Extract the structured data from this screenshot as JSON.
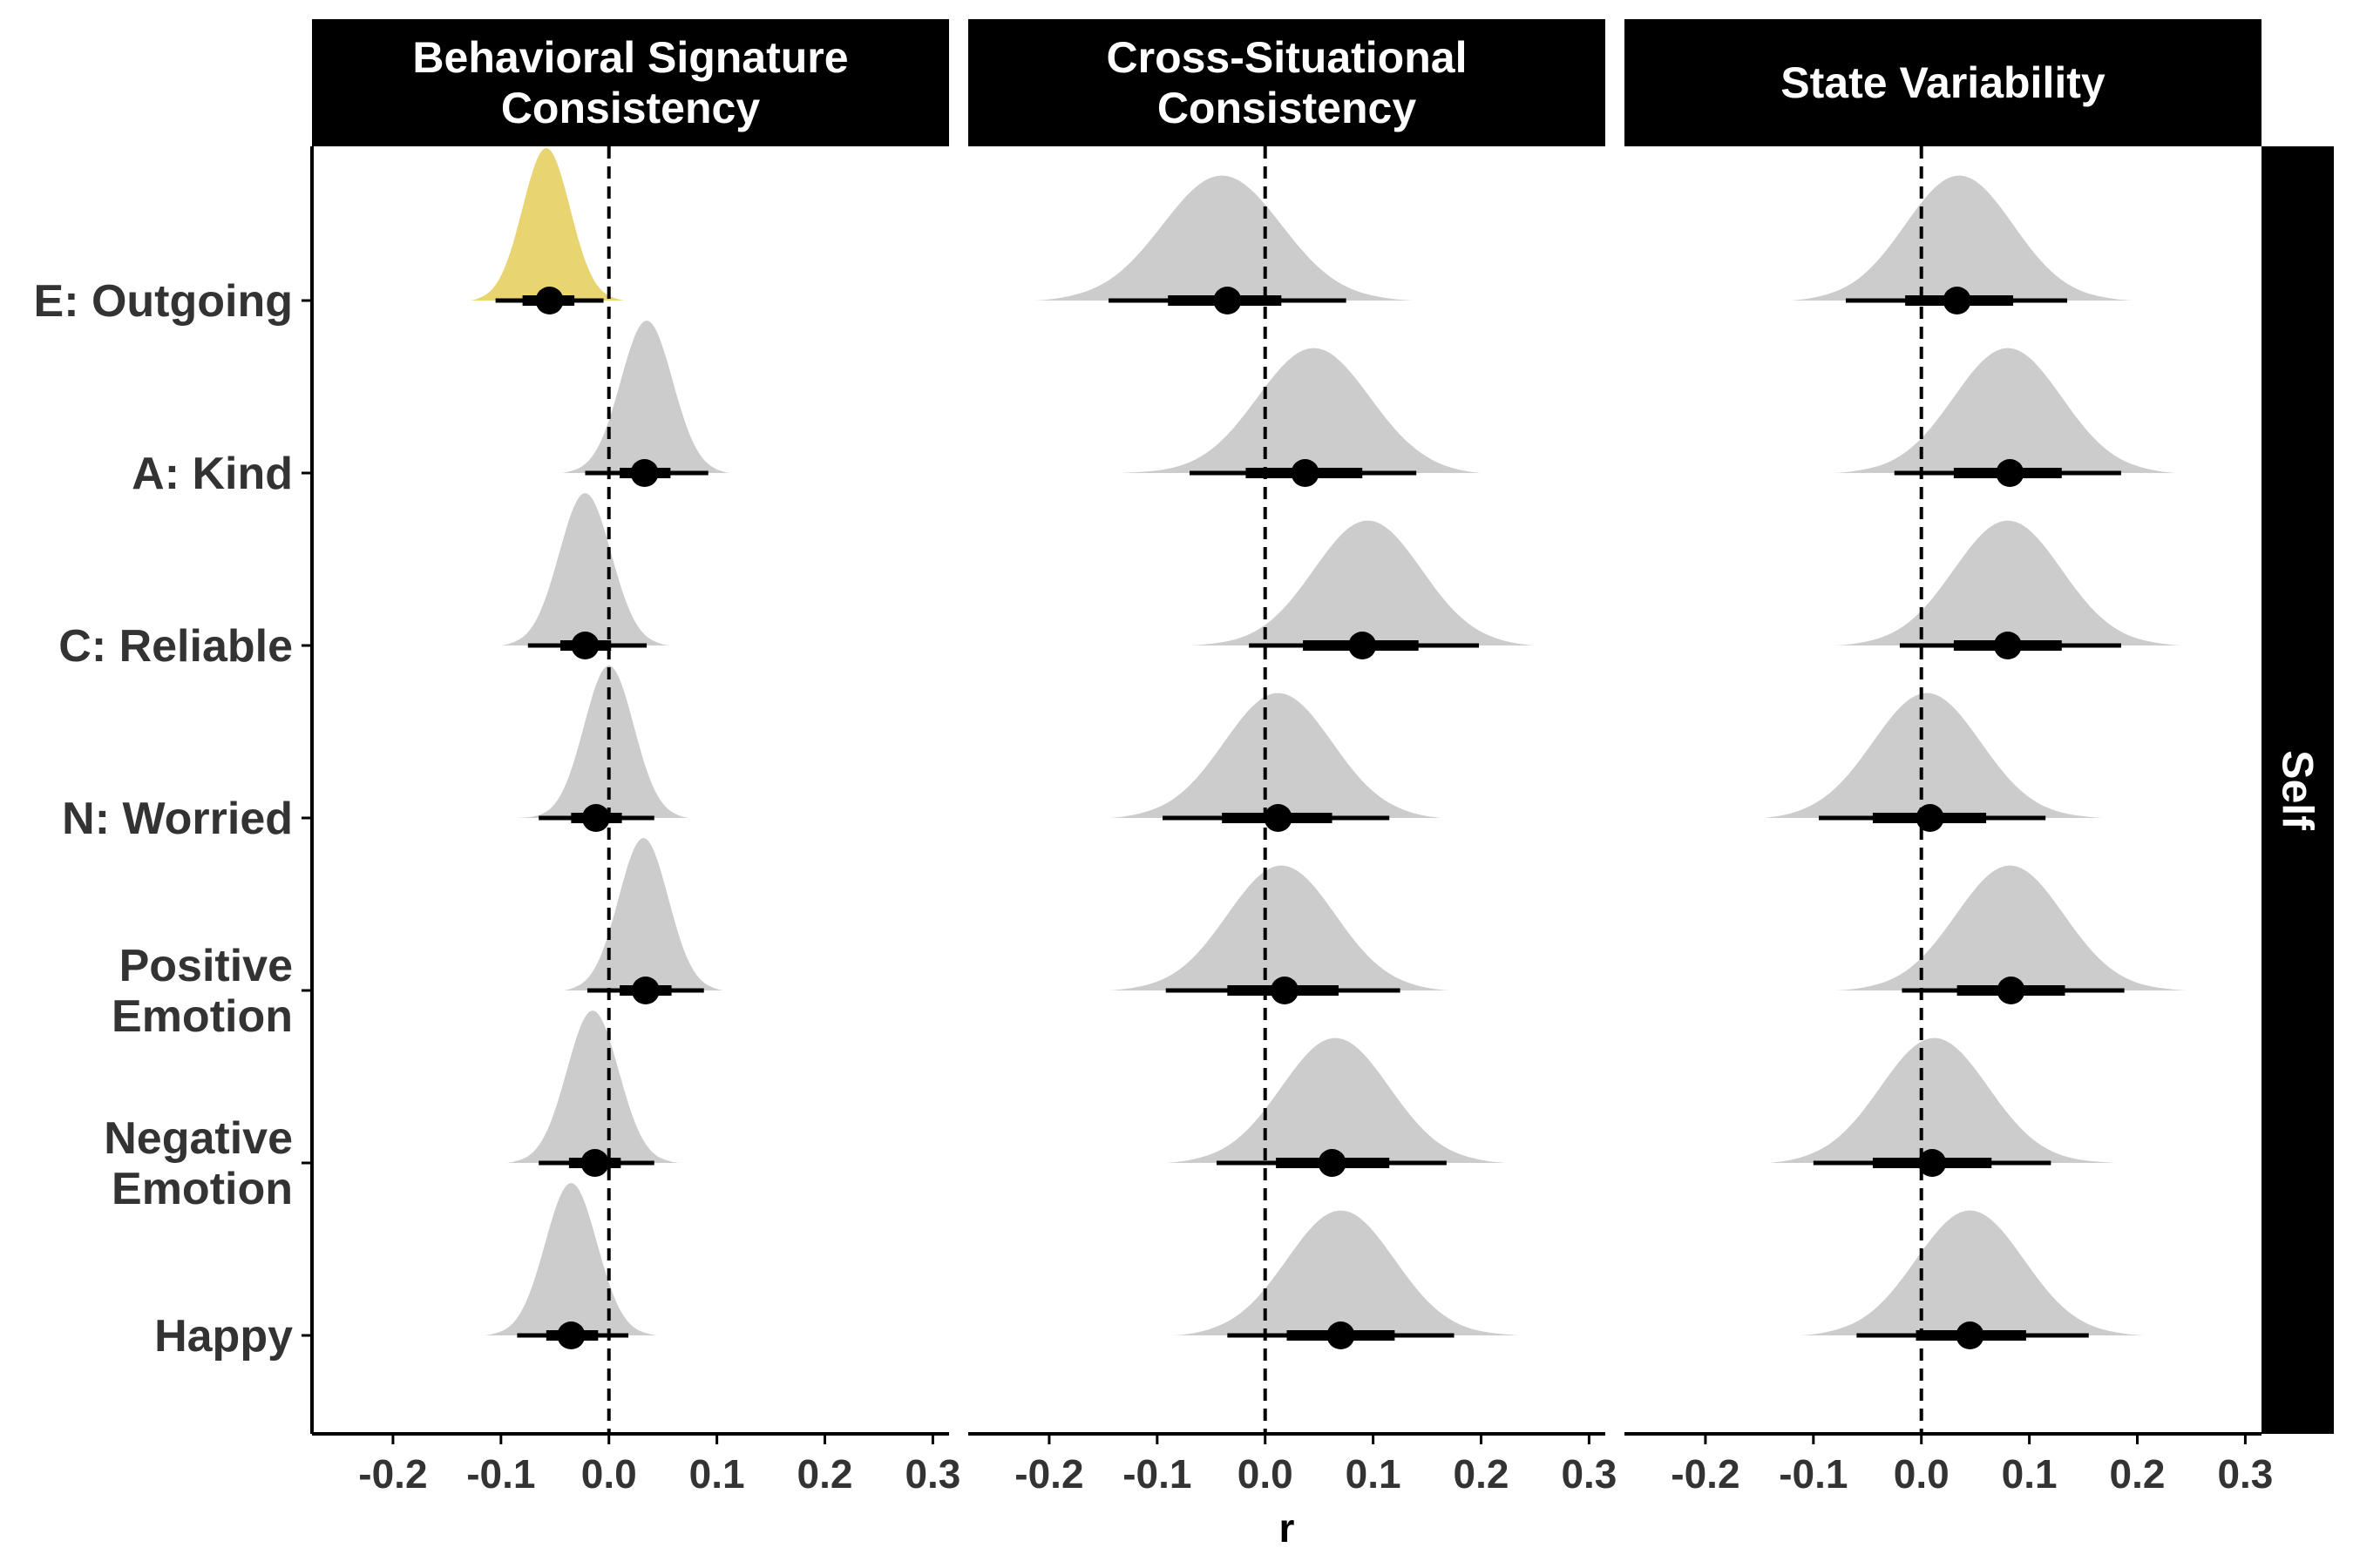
{
  "chart_data": {
    "type": "halfeye",
    "xlabel": "r",
    "xlim": [
      -0.275,
      0.315
    ],
    "xticks": [
      -0.2,
      -0.1,
      0.0,
      0.1,
      0.2,
      0.3
    ],
    "xtick_labels": [
      "-0.2",
      "-0.1",
      "0.0",
      "0.1",
      "0.2",
      "0.3"
    ],
    "reference_line": 0.0,
    "row_facet": "Self",
    "categories": [
      "E: Outgoing",
      "A: Kind",
      "C: Reliable",
      "N: Worried",
      "Positive\nEmotion",
      "Negative\nEmotion",
      "Happy"
    ],
    "panels": [
      {
        "title": "Behavioral Signature\nConsistency",
        "rows": [
          {
            "mode": -0.058,
            "point": -0.055,
            "inner": [
              -0.08,
              -0.032
            ],
            "outer": [
              -0.105,
              -0.005
            ],
            "range": [
              -0.145,
              0.035
            ],
            "sd": 0.022,
            "height": 1.0,
            "highlight": true
          },
          {
            "mode": 0.035,
            "point": 0.033,
            "inner": [
              0.01,
              0.057
            ],
            "outer": [
              -0.022,
              0.092
            ],
            "range": [
              -0.065,
              0.13
            ],
            "sd": 0.024,
            "height": 1.0,
            "highlight": false
          },
          {
            "mode": -0.022,
            "point": -0.022,
            "inner": [
              -0.045,
              0.002
            ],
            "outer": [
              -0.075,
              0.035
            ],
            "range": [
              -0.12,
              0.075
            ],
            "sd": 0.024,
            "height": 1.0,
            "highlight": false
          },
          {
            "mode": 0.0,
            "point": -0.012,
            "inner": [
              -0.035,
              0.012
            ],
            "outer": [
              -0.065,
              0.042
            ],
            "range": [
              -0.12,
              0.095
            ],
            "sd": 0.023,
            "height": 1.0,
            "highlight": false
          },
          {
            "mode": 0.032,
            "point": 0.034,
            "inner": [
              0.01,
              0.058
            ],
            "outer": [
              -0.02,
              0.088
            ],
            "range": [
              -0.06,
              0.125
            ],
            "sd": 0.023,
            "height": 1.0,
            "highlight": false
          },
          {
            "mode": -0.015,
            "point": -0.013,
            "inner": [
              -0.037,
              0.011
            ],
            "outer": [
              -0.065,
              0.042
            ],
            "range": [
              -0.12,
              0.09
            ],
            "sd": 0.024,
            "height": 1.0,
            "highlight": false
          },
          {
            "mode": -0.035,
            "point": -0.035,
            "inner": [
              -0.058,
              -0.01
            ],
            "outer": [
              -0.085,
              0.018
            ],
            "range": [
              -0.14,
              0.07
            ],
            "sd": 0.024,
            "height": 1.0,
            "highlight": false
          }
        ]
      },
      {
        "title": "Cross-Situational\nConsistency",
        "rows": [
          {
            "mode": -0.04,
            "point": -0.035,
            "inner": [
              -0.09,
              0.015
            ],
            "outer": [
              -0.145,
              0.075
            ],
            "range": [
              -0.245,
              0.175
            ],
            "sd": 0.055,
            "height": 0.82,
            "highlight": false
          },
          {
            "mode": 0.045,
            "point": 0.037,
            "inner": [
              -0.018,
              0.09
            ],
            "outer": [
              -0.07,
              0.14
            ],
            "range": [
              -0.19,
              0.21
            ],
            "sd": 0.052,
            "height": 0.82,
            "highlight": false
          },
          {
            "mode": 0.095,
            "point": 0.09,
            "inner": [
              0.035,
              0.142
            ],
            "outer": [
              -0.015,
              0.198
            ],
            "range": [
              -0.11,
              0.275
            ],
            "sd": 0.05,
            "height": 0.82,
            "highlight": false
          },
          {
            "mode": 0.012,
            "point": 0.012,
            "inner": [
              -0.04,
              0.062
            ],
            "outer": [
              -0.095,
              0.115
            ],
            "range": [
              -0.17,
              0.18
            ],
            "sd": 0.05,
            "height": 0.82,
            "highlight": false
          },
          {
            "mode": 0.015,
            "point": 0.018,
            "inner": [
              -0.035,
              0.068
            ],
            "outer": [
              -0.092,
              0.125
            ],
            "range": [
              -0.18,
              0.195
            ],
            "sd": 0.05,
            "height": 0.82,
            "highlight": false
          },
          {
            "mode": 0.065,
            "point": 0.062,
            "inner": [
              0.01,
              0.115
            ],
            "outer": [
              -0.045,
              0.168
            ],
            "range": [
              -0.12,
              0.255
            ],
            "sd": 0.05,
            "height": 0.82,
            "highlight": false
          },
          {
            "mode": 0.07,
            "point": 0.07,
            "inner": [
              0.02,
              0.12
            ],
            "outer": [
              -0.035,
              0.175
            ],
            "range": [
              -0.105,
              0.28
            ],
            "sd": 0.05,
            "height": 0.82,
            "highlight": false
          }
        ]
      },
      {
        "title": "State Variability",
        "rows": [
          {
            "mode": 0.035,
            "point": 0.033,
            "inner": [
              -0.015,
              0.085
            ],
            "outer": [
              -0.07,
              0.135
            ],
            "range": [
              -0.15,
              0.23
            ],
            "sd": 0.05,
            "height": 0.82,
            "highlight": false
          },
          {
            "mode": 0.08,
            "point": 0.082,
            "inner": [
              0.03,
              0.13
            ],
            "outer": [
              -0.025,
              0.185
            ],
            "range": [
              -0.115,
              0.265
            ],
            "sd": 0.05,
            "height": 0.82,
            "highlight": false
          },
          {
            "mode": 0.08,
            "point": 0.08,
            "inner": [
              0.03,
              0.13
            ],
            "outer": [
              -0.02,
              0.185
            ],
            "range": [
              -0.115,
              0.28
            ],
            "sd": 0.05,
            "height": 0.82,
            "highlight": false
          },
          {
            "mode": 0.005,
            "point": 0.008,
            "inner": [
              -0.045,
              0.06
            ],
            "outer": [
              -0.095,
              0.115
            ],
            "range": [
              -0.165,
              0.21
            ],
            "sd": 0.05,
            "height": 0.82,
            "highlight": false
          },
          {
            "mode": 0.082,
            "point": 0.083,
            "inner": [
              0.033,
              0.133
            ],
            "outer": [
              -0.018,
              0.188
            ],
            "range": [
              -0.115,
              0.29
            ],
            "sd": 0.05,
            "height": 0.82,
            "highlight": false
          },
          {
            "mode": 0.012,
            "point": 0.01,
            "inner": [
              -0.045,
              0.065
            ],
            "outer": [
              -0.1,
              0.12
            ],
            "range": [
              -0.165,
              0.23
            ],
            "sd": 0.05,
            "height": 0.82,
            "highlight": false
          },
          {
            "mode": 0.045,
            "point": 0.045,
            "inner": [
              -0.005,
              0.097
            ],
            "outer": [
              -0.06,
              0.155
            ],
            "range": [
              -0.14,
              0.24
            ],
            "sd": 0.05,
            "height": 0.82,
            "highlight": false
          }
        ]
      }
    ],
    "colors": {
      "density": "#cccccc",
      "highlight": "#e8d470",
      "point": "#000000",
      "strip_bg": "#000000",
      "strip_text": "#ffffff",
      "axis": "#000000",
      "tick_label": "#333333"
    }
  }
}
